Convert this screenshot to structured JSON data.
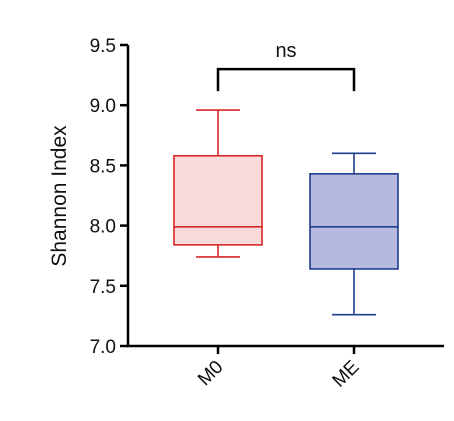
{
  "chart_data": {
    "type": "boxplot",
    "title": "",
    "xlabel": "",
    "ylabel": "Shannon Index",
    "ylim": [
      7.0,
      9.5
    ],
    "yticks": [
      "7.0",
      "7.5",
      "8.0",
      "8.5",
      "9.0",
      "9.5"
    ],
    "grid": false,
    "categories": [
      "M0",
      "ME"
    ],
    "series": [
      {
        "category": "M0",
        "min": 7.74,
        "q1": 7.84,
        "median": 7.99,
        "q3": 8.58,
        "max": 8.96,
        "stroke": "#d62728",
        "fill": "#fadbdb"
      },
      {
        "category": "ME",
        "min": 7.26,
        "q1": 7.64,
        "median": 7.99,
        "q3": 8.43,
        "max": 8.6,
        "stroke": "#1f3f8f",
        "fill": "#b6b9de"
      }
    ],
    "annotation": {
      "text": "ns",
      "between": [
        "M0",
        "ME"
      ],
      "y": 9.3
    }
  }
}
